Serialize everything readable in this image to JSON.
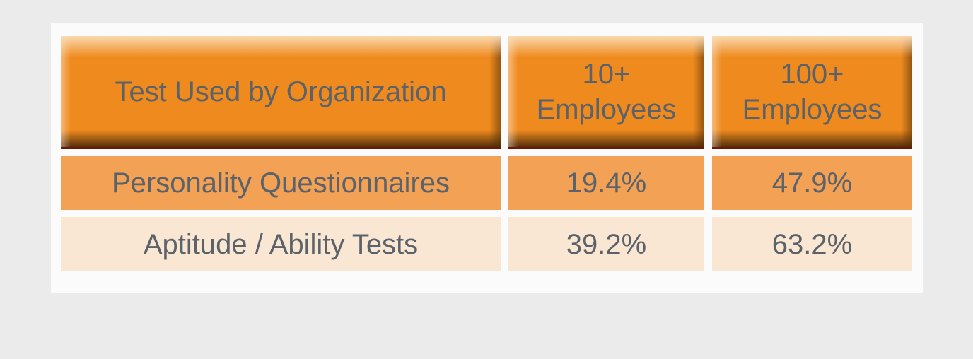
{
  "chart_data": {
    "type": "table",
    "title": "Test Used by Organization",
    "columns": [
      "Test Used by Organization",
      "10+ Employees",
      "100+ Employees"
    ],
    "rows": [
      {
        "label": "Personality Questionnaires",
        "values": [
          "19.4%",
          "47.9%"
        ]
      },
      {
        "label": "Aptitude / Ability Tests",
        "values": [
          "39.2%",
          "63.2%"
        ]
      }
    ]
  },
  "table": {
    "header": [
      {
        "label": "Test Used by Organization"
      },
      {
        "label": "10+\nEmployees"
      },
      {
        "label": "100+\nEmployees"
      }
    ],
    "rows": [
      {
        "label": "Personality Questionnaires",
        "values": [
          "19.4%",
          "47.9%"
        ]
      },
      {
        "label": "Aptitude / Ability Tests",
        "values": [
          "39.2%",
          "63.2%"
        ]
      }
    ]
  },
  "colors": {
    "page_background": "#ebebeb",
    "card_background": "#fbfbfb",
    "header_orange": "#ef8a1e",
    "header_shadow_brown": "#53300a",
    "header_bottom_line": "#701805",
    "row_odd_orange": "#f2a155",
    "row_even_cream": "#f9e7d3",
    "text_gray": "#5b6269"
  }
}
